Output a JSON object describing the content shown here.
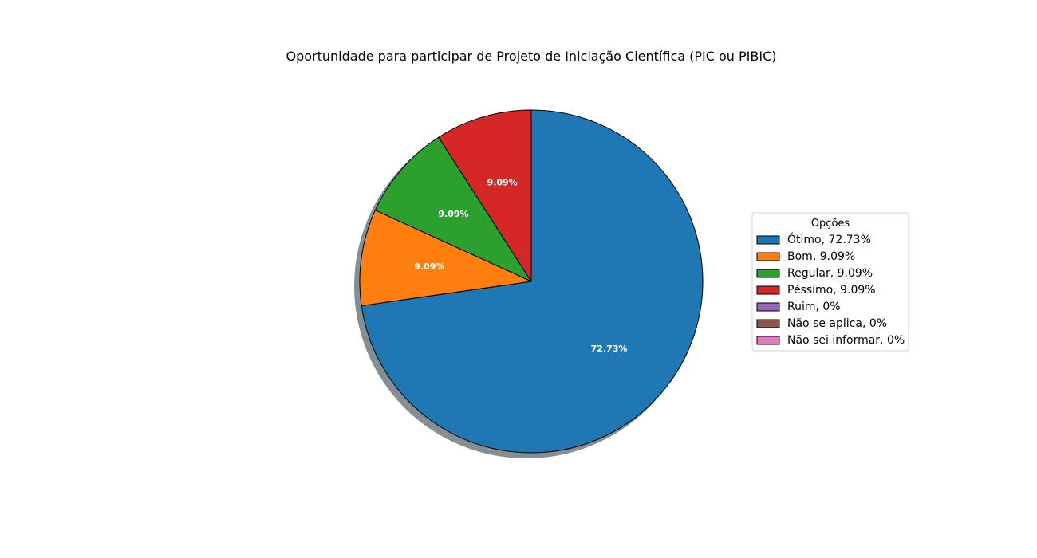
{
  "chart_data": {
    "type": "pie",
    "title": "Oportunidade para participar de Projeto de Iniciação Científica (PIC ou PIBIC)",
    "legend_title": "Opções",
    "legend_position": "right",
    "start_angle_deg": 90,
    "direction": "clockwise",
    "shadow": true,
    "slices": [
      {
        "label": "Ótimo",
        "value": 72.73,
        "pct_label": "72.73%",
        "legend": "Ótimo, 72.73%",
        "color": "#1f77b4"
      },
      {
        "label": "Bom",
        "value": 9.09,
        "pct_label": "9.09%",
        "legend": "Bom, 9.09%",
        "color": "#ff7f0e"
      },
      {
        "label": "Regular",
        "value": 9.09,
        "pct_label": "9.09%",
        "legend": "Regular, 9.09%",
        "color": "#2ca02c"
      },
      {
        "label": "Péssimo",
        "value": 9.09,
        "pct_label": "9.09%",
        "legend": "Péssimo, 9.09%",
        "color": "#d62728"
      },
      {
        "label": "Ruim",
        "value": 0,
        "pct_label": "",
        "legend": "Ruim, 0%",
        "color": "#9467bd"
      },
      {
        "label": "Não se aplica",
        "value": 0,
        "pct_label": "",
        "legend": "Não se aplica, 0%",
        "color": "#8c564b"
      },
      {
        "label": "Não sei informar",
        "value": 0,
        "pct_label": "",
        "legend": "Não sei informar, 0%",
        "color": "#e377c2"
      }
    ]
  }
}
